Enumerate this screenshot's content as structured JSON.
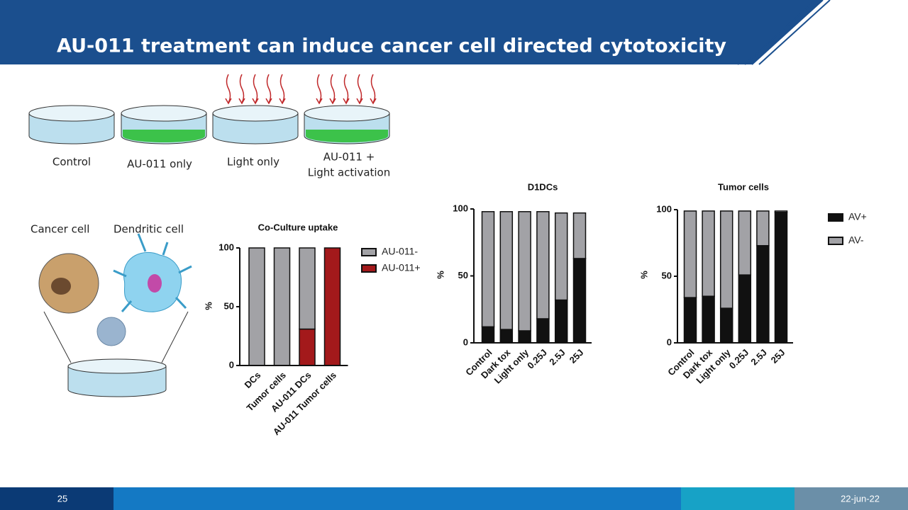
{
  "header": {
    "title": "AU-011 treatment can induce cancer cell directed cytotoxicity"
  },
  "dish_labels": [
    "Control",
    "AU-011 only",
    "Light only",
    "AU-011 +",
    "Light activation"
  ],
  "cell_labels": [
    "Cancer cell",
    "Dendritic cell"
  ],
  "footer": {
    "page": "25",
    "date": "22-jun-22"
  },
  "chart_data": [
    {
      "type": "bar",
      "stacked": true,
      "title": "Co-Culture uptake",
      "ylabel": "%",
      "categories": [
        "DCs",
        "Tumor cells",
        "AU-011 DCs",
        "AU-011 Tumor cells"
      ],
      "series": [
        {
          "name": "AU-011+",
          "color": "#a3191b",
          "values": [
            0,
            0,
            31,
            100
          ]
        },
        {
          "name": "AU-011-",
          "color": "#a2a2a6",
          "values": [
            100,
            100,
            69,
            0
          ]
        }
      ],
      "ylim": [
        0,
        100
      ],
      "yticks": [
        0,
        50,
        100
      ]
    },
    {
      "type": "bar",
      "stacked": true,
      "title": "D1DCs",
      "ylabel": "%",
      "categories": [
        "Control",
        "Dark tox",
        "Light only",
        "0.25J",
        "2.5J",
        "25J"
      ],
      "series": [
        {
          "color": "#111111",
          "values": [
            12,
            10,
            9,
            18,
            32,
            63
          ]
        },
        {
          "color": "#a2a2a6",
          "values": [
            86,
            88,
            89,
            80,
            65,
            34
          ]
        }
      ],
      "ylim": [
        0,
        100
      ],
      "yticks": [
        0,
        50,
        100
      ]
    },
    {
      "type": "bar",
      "stacked": true,
      "title": "Tumor cells",
      "ylabel": "%",
      "categories": [
        "Control",
        "Dark tox",
        "Light only",
        "0.25J",
        "2.5J",
        "25J"
      ],
      "series": [
        {
          "name": "AV+",
          "color": "#111111",
          "values": [
            34,
            35,
            26,
            51,
            73,
            98
          ]
        },
        {
          "name": "AV-",
          "color": "#a2a2a6",
          "values": [
            65,
            64,
            73,
            48,
            26,
            1
          ]
        }
      ],
      "ylim": [
        0,
        100
      ],
      "yticks": [
        0,
        50,
        100
      ]
    }
  ]
}
